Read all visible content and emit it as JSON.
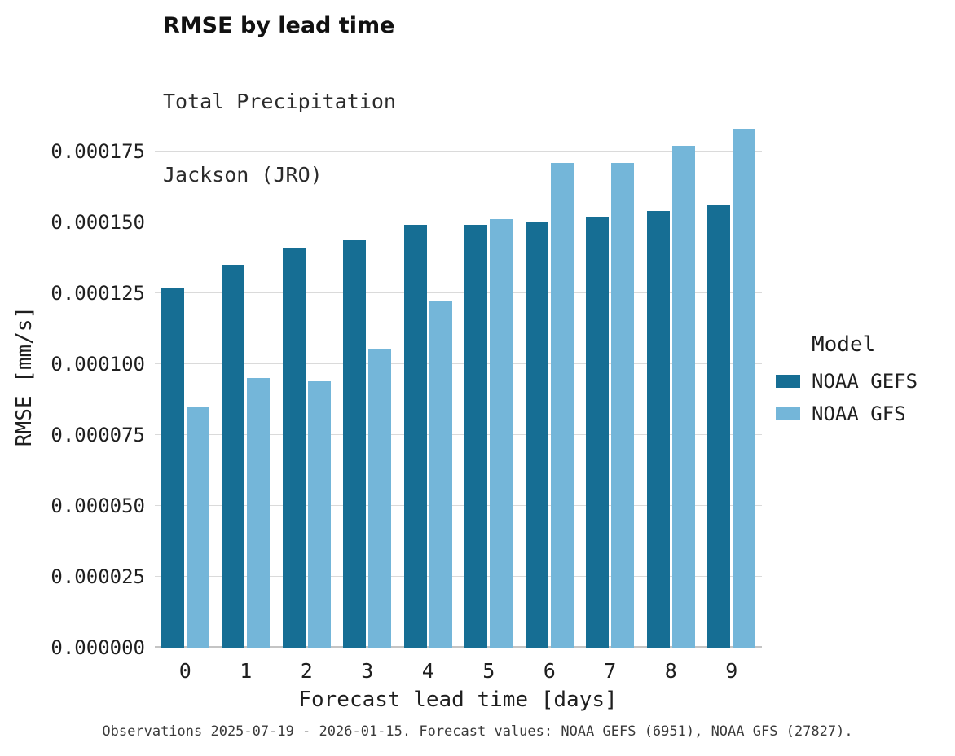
{
  "header": {
    "title": "RMSE by lead time",
    "subtitle1": "Total Precipitation",
    "subtitle2": "Jackson (JRO)"
  },
  "axes": {
    "xlabel": "Forecast lead time [days]",
    "ylabel": "RMSE [mm/s]"
  },
  "legend": {
    "title": "Model"
  },
  "caption": "Observations 2025-07-19 - 2026-01-15. Forecast values: NOAA GEFS (6951), NOAA GFS (27827).",
  "chart_data": {
    "type": "bar",
    "title": "RMSE by lead time",
    "subtitle": "Total Precipitation, Jackson (JRO)",
    "xlabel": "Forecast lead time [days]",
    "ylabel": "RMSE [mm/s]",
    "grid": true,
    "legend_position": "right",
    "legend_title": "Model",
    "categories": [
      0,
      1,
      2,
      3,
      4,
      5,
      6,
      7,
      8,
      9
    ],
    "series": [
      {
        "name": "NOAA GEFS",
        "color": "#166e94",
        "values": [
          0.000127,
          0.000135,
          0.000141,
          0.000144,
          0.000149,
          0.000149,
          0.00015,
          0.000152,
          0.000154,
          0.000156
        ]
      },
      {
        "name": "NOAA GFS",
        "color": "#74b6d9",
        "values": [
          8.5e-05,
          9.5e-05,
          9.4e-05,
          0.000105,
          0.000122,
          0.000151,
          0.000171,
          0.000171,
          0.000177,
          0.000183
        ]
      }
    ],
    "ylim": [
      0,
      0.000191
    ],
    "yticks": [
      0.0,
      2.5e-05,
      5e-05,
      7.5e-05,
      0.0001,
      0.000125,
      0.00015,
      0.000175
    ],
    "ytick_decimals": 6
  }
}
